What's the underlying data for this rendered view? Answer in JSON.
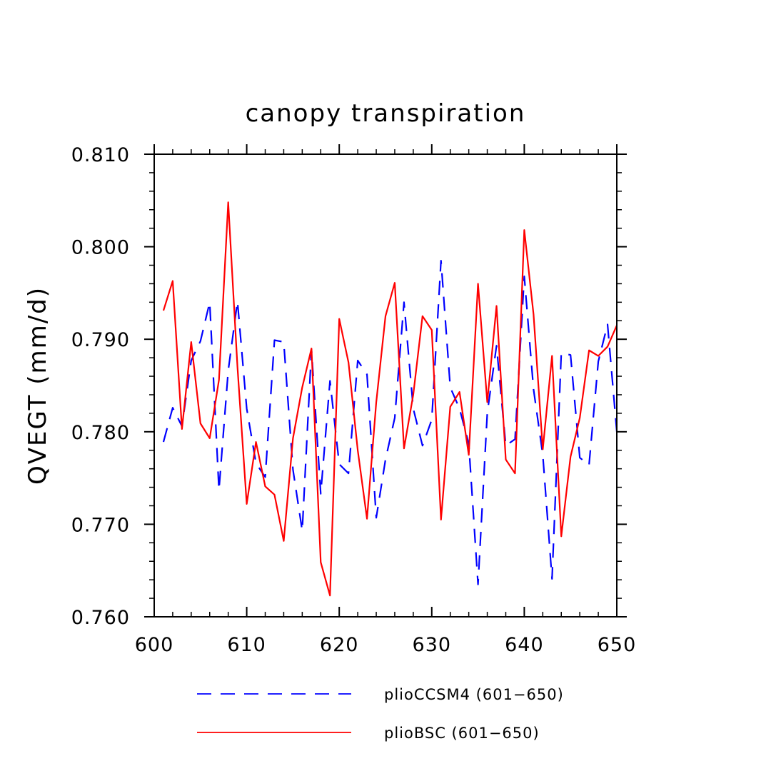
{
  "chart_data": {
    "type": "line",
    "title": "canopy transpiration",
    "xlabel": "",
    "ylabel": "QVEGT  (mm/d)",
    "xlim": [
      600,
      650
    ],
    "ylim": [
      0.76,
      0.81
    ],
    "xticks": [
      600,
      610,
      620,
      630,
      640,
      650
    ],
    "xtick_labels": [
      "600",
      "610",
      "620",
      "630",
      "640",
      "650"
    ],
    "yticks": [
      0.76,
      0.77,
      0.78,
      0.79,
      0.8,
      0.81
    ],
    "ytick_labels": [
      "0.760",
      "0.770",
      "0.780",
      "0.790",
      "0.800",
      "0.810"
    ],
    "x": [
      601,
      602,
      603,
      604,
      605,
      606,
      607,
      608,
      609,
      610,
      611,
      612,
      613,
      614,
      615,
      616,
      617,
      618,
      619,
      620,
      621,
      622,
      623,
      624,
      625,
      626,
      627,
      628,
      629,
      630,
      631,
      632,
      633,
      634,
      635,
      636,
      637,
      638,
      639,
      640,
      641,
      642,
      643,
      644,
      645,
      646,
      647,
      648,
      649,
      650
    ],
    "series": [
      {
        "name": "plioCCSM4 (601-650)",
        "color": "#0000ff",
        "style": "dashed",
        "values": [
          0.7789,
          0.7826,
          0.7806,
          0.7877,
          0.7898,
          0.794,
          0.7737,
          0.7866,
          0.7941,
          0.7825,
          0.7766,
          0.7751,
          0.7899,
          0.7897,
          0.7759,
          0.7693,
          0.7889,
          0.7733,
          0.7855,
          0.7765,
          0.7755,
          0.7877,
          0.7862,
          0.7707,
          0.777,
          0.7815,
          0.794,
          0.7825,
          0.7785,
          0.7813,
          0.7985,
          0.7848,
          0.7825,
          0.7787,
          0.7635,
          0.782,
          0.7893,
          0.7785,
          0.7792,
          0.7968,
          0.7846,
          0.7775,
          0.7641,
          0.7885,
          0.7883,
          0.7772,
          0.7764,
          0.7876,
          0.7916,
          0.78
        ]
      },
      {
        "name": "plioBSC (601-650)",
        "color": "#ff0000",
        "style": "solid",
        "values": [
          0.7931,
          0.7963,
          0.7803,
          0.7897,
          0.7809,
          0.7793,
          0.7856,
          0.8048,
          0.787,
          0.7722,
          0.7789,
          0.7741,
          0.7732,
          0.7682,
          0.7793,
          0.7848,
          0.789,
          0.7659,
          0.7623,
          0.7922,
          0.7875,
          0.778,
          0.7706,
          0.7832,
          0.7925,
          0.7961,
          0.7782,
          0.784,
          0.7925,
          0.791,
          0.7705,
          0.7827,
          0.7843,
          0.7775,
          0.796,
          0.7832,
          0.7936,
          0.777,
          0.7755,
          0.8018,
          0.7927,
          0.7781,
          0.7882,
          0.7687,
          0.7773,
          0.7815,
          0.7888,
          0.7882,
          0.7892,
          0.7915
        ]
      }
    ],
    "legend": [
      {
        "label": "plioCCSM4 (601−650)",
        "color": "#0000ff",
        "style": "dashed"
      },
      {
        "label": "plioBSC (601−650)",
        "color": "#ff0000",
        "style": "solid"
      }
    ],
    "legend_position": "bottom",
    "grid": false
  }
}
